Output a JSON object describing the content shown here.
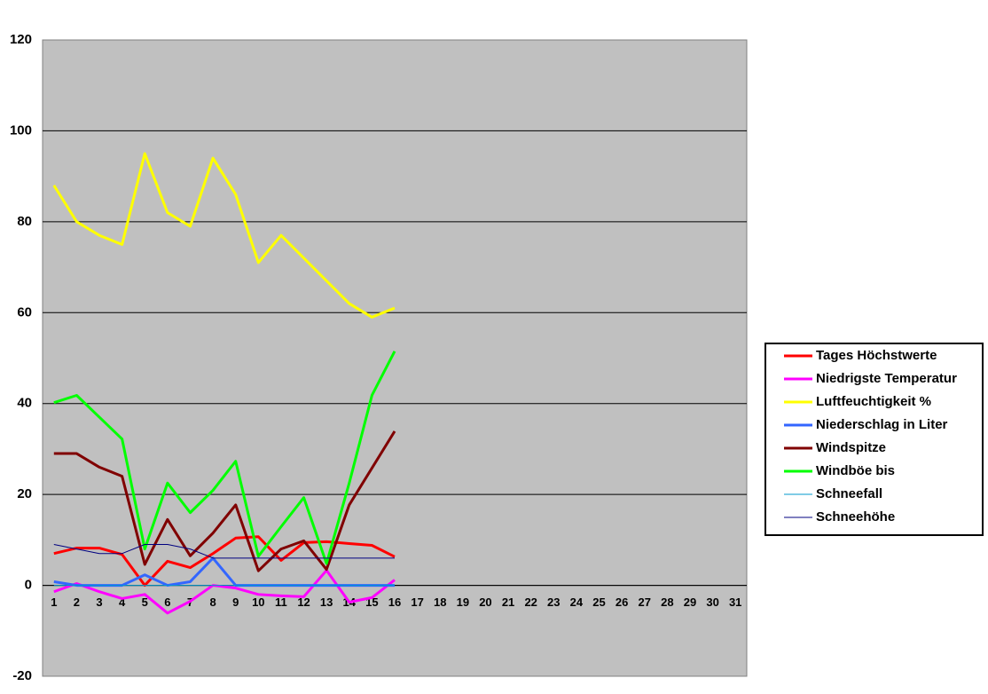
{
  "chart_data": {
    "type": "line",
    "categories": [
      "1",
      "2",
      "3",
      "4",
      "5",
      "6",
      "7",
      "8",
      "9",
      "10",
      "11",
      "12",
      "13",
      "14",
      "15",
      "16",
      "17",
      "18",
      "19",
      "20",
      "21",
      "22",
      "23",
      "24",
      "25",
      "26",
      "27",
      "28",
      "29",
      "30",
      "31"
    ],
    "ylim": [
      -20,
      120
    ],
    "yticks": [
      -20,
      0,
      20,
      40,
      60,
      80,
      100,
      120
    ],
    "grid": true,
    "legend": "right",
    "series": [
      {
        "name": "Tages Höchstwerte",
        "color": "#ff0000",
        "line_width": 3,
        "values": [
          7.0,
          8.2,
          8.2,
          6.8,
          0,
          5.3,
          3.9,
          7.0,
          10.4,
          10.7,
          5.5,
          9.4,
          9.6,
          9.2,
          8.8,
          6.3,
          null,
          null,
          null,
          null,
          null,
          null,
          null,
          null,
          null,
          null,
          null,
          null,
          null,
          null,
          null
        ]
      },
      {
        "name": "Niedrigste Temperatur",
        "color": "#ff00ff",
        "line_width": 3,
        "values": [
          -1.4,
          0.4,
          -1.4,
          -2.9,
          -2.0,
          -6.1,
          -3.5,
          0,
          -0.6,
          -2.0,
          -2.3,
          -2.5,
          3.3,
          -3.7,
          -2.7,
          1.2,
          null,
          null,
          null,
          null,
          null,
          null,
          null,
          null,
          null,
          null,
          null,
          null,
          null,
          null,
          null
        ]
      },
      {
        "name": "Luftfeuchtigkeit %",
        "color": "#ffff00",
        "line_width": 3,
        "values": [
          88,
          80,
          77,
          75,
          95,
          82,
          79,
          94,
          86,
          71,
          77,
          72,
          67,
          62,
          59,
          61,
          null,
          null,
          null,
          null,
          null,
          null,
          null,
          null,
          null,
          null,
          null,
          null,
          null,
          null,
          null
        ]
      },
      {
        "name": "Niederschlag in Liter",
        "color": "#3366ff",
        "line_width": 3,
        "values": [
          0.8,
          0,
          0,
          0,
          2.3,
          0,
          0.8,
          6.0,
          0,
          0,
          0,
          0,
          0,
          0,
          0,
          0,
          null,
          null,
          null,
          null,
          null,
          null,
          null,
          null,
          null,
          null,
          null,
          null,
          null,
          null,
          null
        ]
      },
      {
        "name": "Windspitze",
        "color": "#800000",
        "line_width": 3,
        "values": [
          29,
          29,
          26,
          24,
          4.6,
          14.5,
          6.5,
          11.5,
          17.7,
          3.2,
          8.0,
          9.8,
          3.5,
          17.7,
          25.8,
          33.9,
          null,
          null,
          null,
          null,
          null,
          null,
          null,
          null,
          null,
          null,
          null,
          null,
          null,
          null,
          null
        ]
      },
      {
        "name": "Windböe bis",
        "color": "#00ff00",
        "line_width": 3,
        "values": [
          40.2,
          41.8,
          37.0,
          32.2,
          8.0,
          22.5,
          16.0,
          20.9,
          27.3,
          6.4,
          12.9,
          19.3,
          4.8,
          22.5,
          41.8,
          51.5,
          null,
          null,
          null,
          null,
          null,
          null,
          null,
          null,
          null,
          null,
          null,
          null,
          null,
          null,
          null
        ]
      },
      {
        "name": "Schneefall",
        "color": "#0099cc",
        "line_width": 1,
        "values": [
          0,
          0,
          0,
          0,
          0,
          0,
          0,
          0,
          0,
          0,
          0,
          0,
          0,
          0,
          0,
          0,
          null,
          null,
          null,
          null,
          null,
          null,
          null,
          null,
          null,
          null,
          null,
          null,
          null,
          null,
          null
        ]
      },
      {
        "name": "Schneehöhe",
        "color": "#000080",
        "line_width": 1,
        "values": [
          9,
          8,
          7,
          7,
          9,
          9,
          8,
          6,
          6,
          6,
          6,
          6,
          6,
          6,
          6,
          6,
          null,
          null,
          null,
          null,
          null,
          null,
          null,
          null,
          null,
          null,
          null,
          null,
          null,
          null,
          null
        ]
      }
    ]
  }
}
